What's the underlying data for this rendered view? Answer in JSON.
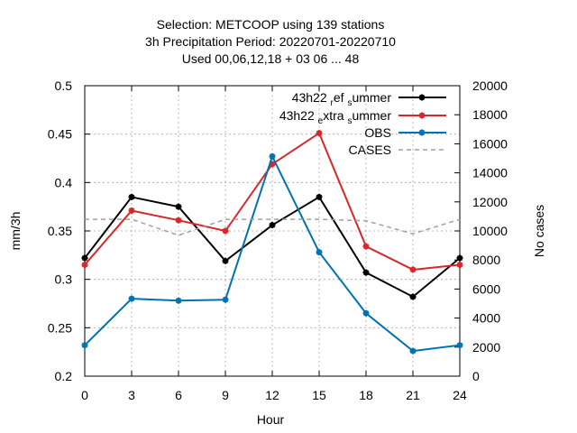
{
  "chart_data": {
    "type": "line",
    "title_lines": [
      "Selection: METCOOP using   139 stations",
      "3h Precipitation   Period: 20220701-20220710",
      "Used  00,06,12,18  + 03 06 ... 48"
    ],
    "xlabel": "Hour",
    "ylabel": "mm/3h",
    "y2label": "No cases",
    "x": [
      0,
      3,
      6,
      9,
      12,
      15,
      18,
      21,
      24
    ],
    "xlim": [
      0,
      24
    ],
    "ylim": [
      0.2,
      0.5
    ],
    "y2lim": [
      0,
      20000
    ],
    "x_ticks": [
      "0",
      "3",
      "6",
      "9",
      "12",
      "15",
      "18",
      "21",
      "24"
    ],
    "y_ticks": [
      "0.2",
      "0.25",
      "0.3",
      "0.35",
      "0.4",
      "0.45",
      "0.5"
    ],
    "y2_ticks": [
      "0",
      "2000",
      "4000",
      "6000",
      "8000",
      "10000",
      "12000",
      "14000",
      "16000",
      "18000",
      "20000"
    ],
    "grid": true,
    "legend_position": "top-right",
    "series": [
      {
        "name_parts": [
          "43h22",
          "r",
          "ef",
          "s",
          "ummer"
        ],
        "color": "#000000",
        "axis": "y1",
        "dash": "solid",
        "values": [
          0.322,
          0.385,
          0.375,
          0.319,
          0.356,
          0.385,
          0.307,
          0.282,
          0.322
        ]
      },
      {
        "name_parts": [
          "43h22",
          "e",
          "xtra",
          "s",
          "ummer"
        ],
        "color": "#d62828",
        "axis": "y1",
        "dash": "solid",
        "values": [
          0.315,
          0.371,
          0.361,
          0.35,
          0.419,
          0.451,
          0.334,
          0.31,
          0.315
        ]
      },
      {
        "name": "OBS",
        "color": "#0072b2",
        "axis": "y1",
        "dash": "solid",
        "values": [
          0.232,
          0.28,
          0.278,
          0.279,
          0.427,
          0.328,
          0.265,
          0.226,
          0.232
        ]
      },
      {
        "name": "CASES",
        "color": "#a0a0a0",
        "axis": "y2",
        "dash": "dashed",
        "values": [
          10800,
          10800,
          9700,
          10800,
          10800,
          10800,
          10700,
          9800,
          10800
        ]
      }
    ]
  }
}
